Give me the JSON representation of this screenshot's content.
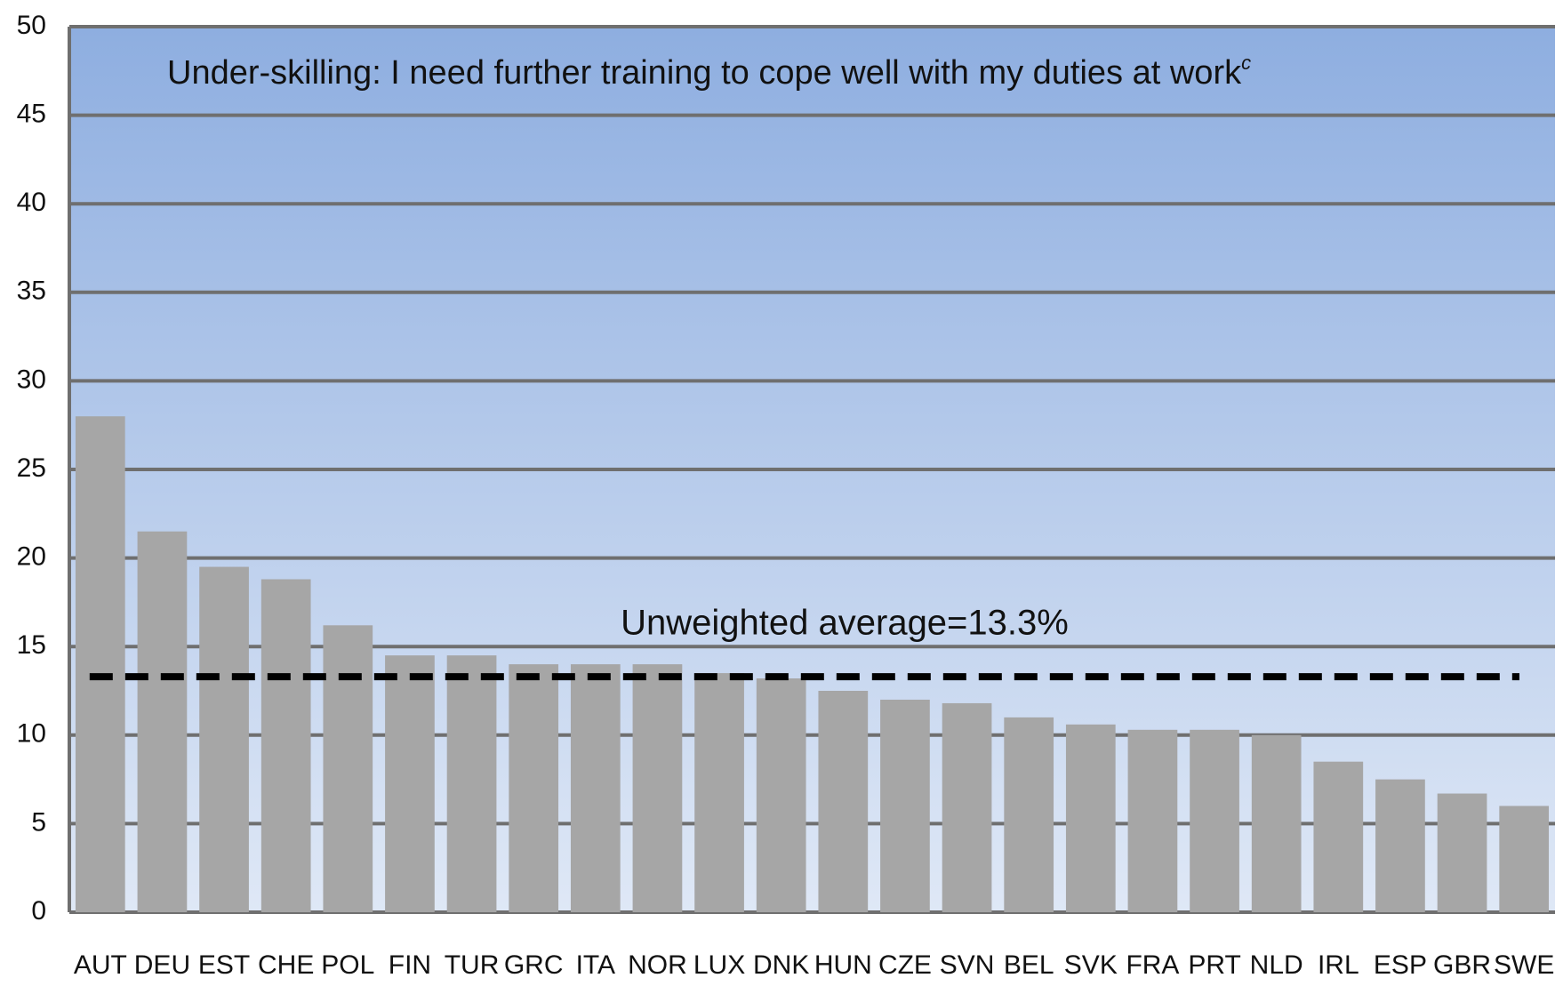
{
  "chart_data": {
    "type": "bar",
    "title": "Under-skilling: I need further training to cope well with my duties at work",
    "title_superscript": "c",
    "categories": [
      "AUT",
      "DEU",
      "EST",
      "CHE",
      "POL",
      "FIN",
      "TUR",
      "GRC",
      "ITA",
      "NOR",
      "LUX",
      "DNK",
      "HUN",
      "CZE",
      "SVN",
      "BEL",
      "SVK",
      "FRA",
      "PRT",
      "NLD",
      "IRL",
      "ESP",
      "GBR",
      "SWE"
    ],
    "values": [
      28,
      21.5,
      19.5,
      18.8,
      16.2,
      14.5,
      14.5,
      14,
      14,
      14,
      13.5,
      13.2,
      12.5,
      12,
      11.8,
      11,
      10.6,
      10.3,
      10.3,
      10,
      8.5,
      7.5,
      6.7,
      6
    ],
    "color": "#a6a6a6",
    "average": {
      "value": 13.3,
      "label": "Unweighted average=13.3%"
    },
    "ylim": [
      0,
      50
    ],
    "yticks": [
      0,
      5,
      10,
      15,
      20,
      25,
      30,
      35,
      40,
      45,
      50
    ],
    "grid": true
  }
}
